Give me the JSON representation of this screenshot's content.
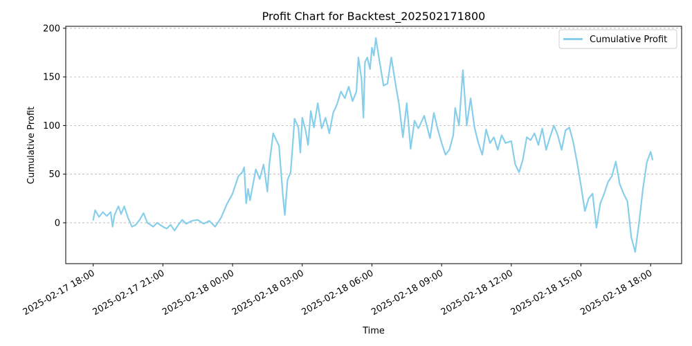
{
  "chart_data": {
    "type": "line",
    "title": "Profit Chart for Backtest_202502171800",
    "xlabel": "Time",
    "ylabel": "Cumulative Profit",
    "x_axis": "datetime",
    "x_range": [
      "2025-02-17 16:49",
      "2025-02-18 19:20"
    ],
    "ylim": [
      -42,
      202
    ],
    "x_ticks": [
      "2025-02-17 18:00",
      "2025-02-17 21:00",
      "2025-02-18 00:00",
      "2025-02-18 03:00",
      "2025-02-18 06:00",
      "2025-02-18 09:00",
      "2025-02-18 12:00",
      "2025-02-18 15:00",
      "2025-02-18 18:00"
    ],
    "y_ticks": [
      0,
      50,
      100,
      150,
      200
    ],
    "grid": {
      "y": true,
      "x": false,
      "style": "dashed"
    },
    "legend": {
      "position": "top-right"
    },
    "series": [
      {
        "name": "Cumulative Profit",
        "color": "#87CEEB",
        "points": [
          [
            "2025-02-17 18:00",
            3
          ],
          [
            "2025-02-17 18:05",
            13
          ],
          [
            "2025-02-17 18:15",
            6
          ],
          [
            "2025-02-17 18:25",
            11
          ],
          [
            "2025-02-17 18:35",
            7
          ],
          [
            "2025-02-17 18:45",
            11
          ],
          [
            "2025-02-17 18:50",
            -4
          ],
          [
            "2025-02-17 18:55",
            8
          ],
          [
            "2025-02-17 19:05",
            17
          ],
          [
            "2025-02-17 19:12",
            9
          ],
          [
            "2025-02-17 19:20",
            17
          ],
          [
            "2025-02-17 19:30",
            5
          ],
          [
            "2025-02-17 19:40",
            -4
          ],
          [
            "2025-02-17 19:50",
            -2
          ],
          [
            "2025-02-17 20:00",
            3
          ],
          [
            "2025-02-17 20:10",
            10
          ],
          [
            "2025-02-17 20:20",
            0
          ],
          [
            "2025-02-17 20:35",
            -4
          ],
          [
            "2025-02-17 20:45",
            0
          ],
          [
            "2025-02-17 21:00",
            -4
          ],
          [
            "2025-02-17 21:10",
            -6
          ],
          [
            "2025-02-17 21:20",
            -2
          ],
          [
            "2025-02-17 21:30",
            -8
          ],
          [
            "2025-02-17 21:40",
            -2
          ],
          [
            "2025-02-17 21:50",
            3
          ],
          [
            "2025-02-17 22:00",
            -1
          ],
          [
            "2025-02-17 22:15",
            2
          ],
          [
            "2025-02-17 22:30",
            3
          ],
          [
            "2025-02-17 22:45",
            -1
          ],
          [
            "2025-02-17 23:00",
            2
          ],
          [
            "2025-02-17 23:15",
            -4
          ],
          [
            "2025-02-17 23:30",
            5
          ],
          [
            "2025-02-17 23:45",
            19
          ],
          [
            "2025-02-18 00:00",
            30
          ],
          [
            "2025-02-18 00:15",
            48
          ],
          [
            "2025-02-18 00:25",
            52
          ],
          [
            "2025-02-18 00:30",
            57
          ],
          [
            "2025-02-18 00:35",
            20
          ],
          [
            "2025-02-18 00:40",
            35
          ],
          [
            "2025-02-18 00:45",
            23
          ],
          [
            "2025-02-18 01:00",
            55
          ],
          [
            "2025-02-18 01:10",
            45
          ],
          [
            "2025-02-18 01:20",
            60
          ],
          [
            "2025-02-18 01:30",
            32
          ],
          [
            "2025-02-18 01:35",
            60
          ],
          [
            "2025-02-18 01:45",
            92
          ],
          [
            "2025-02-18 02:00",
            79
          ],
          [
            "2025-02-18 02:10",
            28
          ],
          [
            "2025-02-18 02:15",
            8
          ],
          [
            "2025-02-18 02:22",
            44
          ],
          [
            "2025-02-18 02:30",
            52
          ],
          [
            "2025-02-18 02:35",
            78
          ],
          [
            "2025-02-18 02:40",
            107
          ],
          [
            "2025-02-18 02:50",
            98
          ],
          [
            "2025-02-18 02:55",
            72
          ],
          [
            "2025-02-18 03:00",
            108
          ],
          [
            "2025-02-18 03:08",
            96
          ],
          [
            "2025-02-18 03:15",
            80
          ],
          [
            "2025-02-18 03:22",
            115
          ],
          [
            "2025-02-18 03:30",
            98
          ],
          [
            "2025-02-18 03:40",
            123
          ],
          [
            "2025-02-18 03:50",
            97
          ],
          [
            "2025-02-18 04:00",
            108
          ],
          [
            "2025-02-18 04:10",
            92
          ],
          [
            "2025-02-18 04:20",
            113
          ],
          [
            "2025-02-18 04:30",
            122
          ],
          [
            "2025-02-18 04:40",
            135
          ],
          [
            "2025-02-18 04:50",
            128
          ],
          [
            "2025-02-18 05:00",
            140
          ],
          [
            "2025-02-18 05:10",
            125
          ],
          [
            "2025-02-18 05:20",
            135
          ],
          [
            "2025-02-18 05:25",
            170
          ],
          [
            "2025-02-18 05:33",
            148
          ],
          [
            "2025-02-18 05:38",
            108
          ],
          [
            "2025-02-18 05:42",
            165
          ],
          [
            "2025-02-18 05:48",
            170
          ],
          [
            "2025-02-18 05:55",
            158
          ],
          [
            "2025-02-18 06:00",
            180
          ],
          [
            "2025-02-18 06:05",
            172
          ],
          [
            "2025-02-18 06:10",
            190
          ],
          [
            "2025-02-18 06:20",
            165
          ],
          [
            "2025-02-18 06:30",
            141
          ],
          [
            "2025-02-18 06:40",
            143
          ],
          [
            "2025-02-18 06:50",
            170
          ],
          [
            "2025-02-18 07:00",
            145
          ],
          [
            "2025-02-18 07:10",
            122
          ],
          [
            "2025-02-18 07:20",
            88
          ],
          [
            "2025-02-18 07:30",
            123
          ],
          [
            "2025-02-18 07:40",
            76
          ],
          [
            "2025-02-18 07:50",
            105
          ],
          [
            "2025-02-18 08:00",
            97
          ],
          [
            "2025-02-18 08:15",
            110
          ],
          [
            "2025-02-18 08:30",
            87
          ],
          [
            "2025-02-18 08:40",
            113
          ],
          [
            "2025-02-18 08:50",
            96
          ],
          [
            "2025-02-18 09:00",
            82
          ],
          [
            "2025-02-18 09:10",
            70
          ],
          [
            "2025-02-18 09:20",
            75
          ],
          [
            "2025-02-18 09:30",
            90
          ],
          [
            "2025-02-18 09:35",
            118
          ],
          [
            "2025-02-18 09:45",
            100
          ],
          [
            "2025-02-18 09:55",
            157
          ],
          [
            "2025-02-18 10:05",
            100
          ],
          [
            "2025-02-18 10:15",
            128
          ],
          [
            "2025-02-18 10:25",
            98
          ],
          [
            "2025-02-18 10:35",
            82
          ],
          [
            "2025-02-18 10:45",
            70
          ],
          [
            "2025-02-18 10:55",
            96
          ],
          [
            "2025-02-18 11:05",
            82
          ],
          [
            "2025-02-18 11:15",
            88
          ],
          [
            "2025-02-18 11:25",
            75
          ],
          [
            "2025-02-18 11:35",
            90
          ],
          [
            "2025-02-18 11:45",
            82
          ],
          [
            "2025-02-18 12:00",
            84
          ],
          [
            "2025-02-18 12:10",
            60
          ],
          [
            "2025-02-18 12:20",
            52
          ],
          [
            "2025-02-18 12:30",
            65
          ],
          [
            "2025-02-18 12:40",
            88
          ],
          [
            "2025-02-18 12:50",
            85
          ],
          [
            "2025-02-18 13:00",
            92
          ],
          [
            "2025-02-18 13:10",
            80
          ],
          [
            "2025-02-18 13:20",
            97
          ],
          [
            "2025-02-18 13:30",
            75
          ],
          [
            "2025-02-18 13:40",
            88
          ],
          [
            "2025-02-18 13:50",
            100
          ],
          [
            "2025-02-18 14:00",
            90
          ],
          [
            "2025-02-18 14:10",
            75
          ],
          [
            "2025-02-18 14:20",
            95
          ],
          [
            "2025-02-18 14:30",
            98
          ],
          [
            "2025-02-18 14:40",
            83
          ],
          [
            "2025-02-18 14:50",
            62
          ],
          [
            "2025-02-18 15:00",
            38
          ],
          [
            "2025-02-18 15:10",
            12
          ],
          [
            "2025-02-18 15:20",
            25
          ],
          [
            "2025-02-18 15:30",
            30
          ],
          [
            "2025-02-18 15:40",
            -5
          ],
          [
            "2025-02-18 15:50",
            20
          ],
          [
            "2025-02-18 16:00",
            30
          ],
          [
            "2025-02-18 16:10",
            42
          ],
          [
            "2025-02-18 16:20",
            48
          ],
          [
            "2025-02-18 16:30",
            63
          ],
          [
            "2025-02-18 16:40",
            40
          ],
          [
            "2025-02-18 16:50",
            30
          ],
          [
            "2025-02-18 17:00",
            22
          ],
          [
            "2025-02-18 17:10",
            -15
          ],
          [
            "2025-02-18 17:20",
            -30
          ],
          [
            "2025-02-18 17:30",
            0
          ],
          [
            "2025-02-18 17:40",
            35
          ],
          [
            "2025-02-18 17:50",
            62
          ],
          [
            "2025-02-18 18:00",
            73
          ],
          [
            "2025-02-18 18:05",
            65
          ]
        ]
      }
    ]
  }
}
